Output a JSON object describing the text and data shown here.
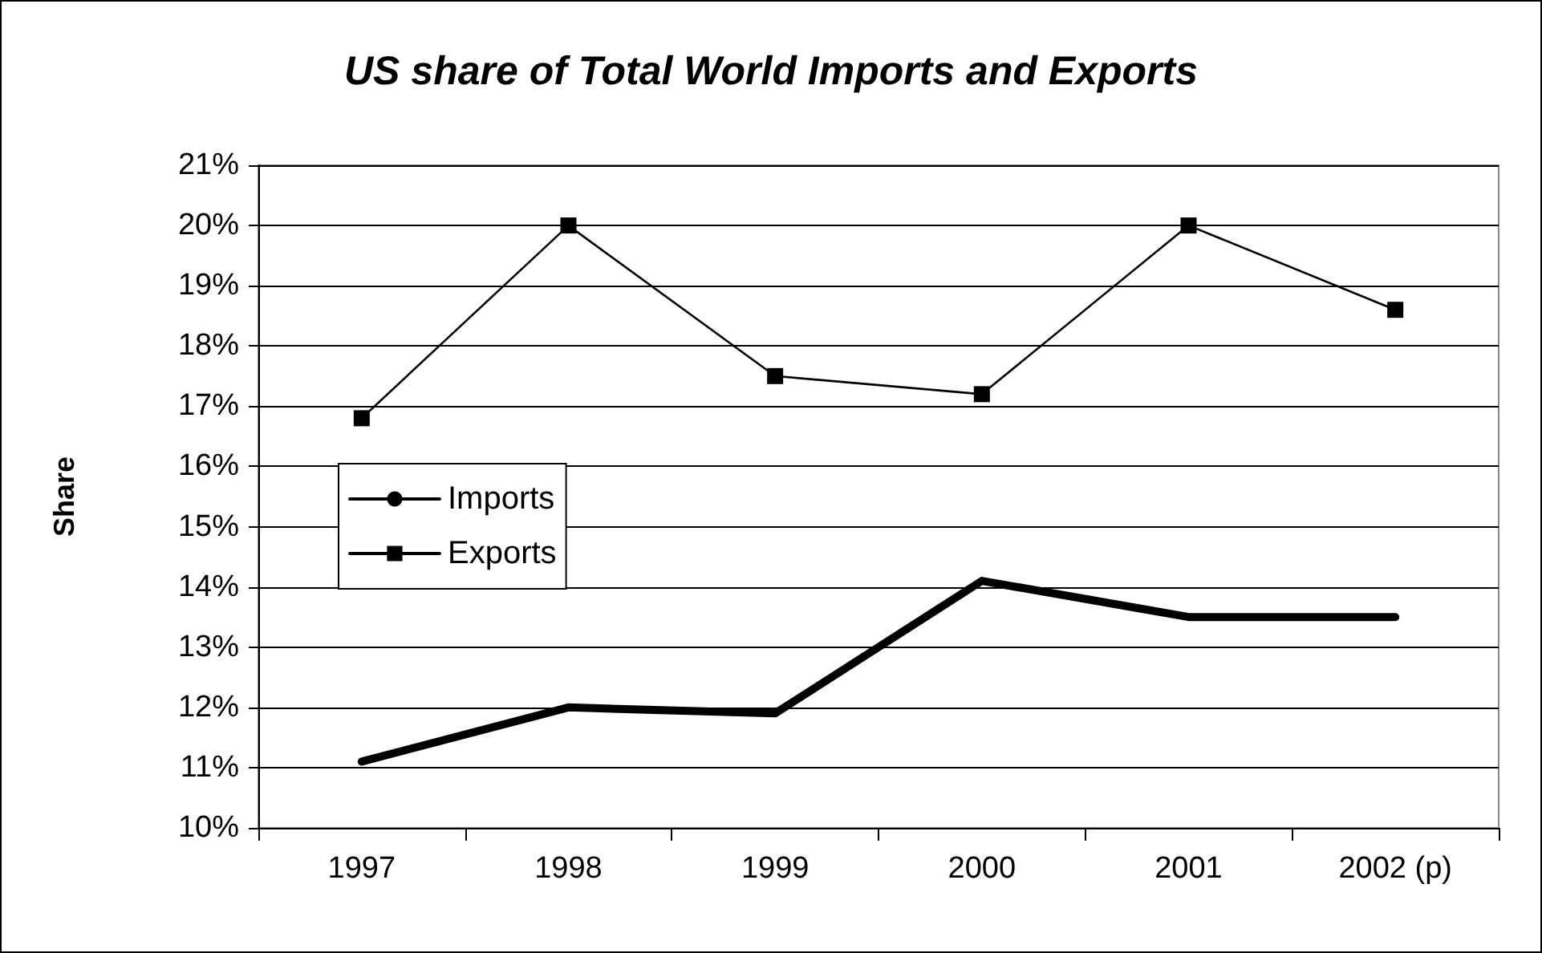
{
  "chart_data": {
    "type": "line",
    "title": "US share of Total World Imports and Exports",
    "ylabel": "Share",
    "categories": [
      "1997",
      "1998",
      "1999",
      "2000",
      "2001",
      "2002 (p)"
    ],
    "series": [
      {
        "name": "Imports",
        "color": "#000000",
        "marker": "none",
        "values": [
          11.1,
          12.0,
          11.9,
          14.1,
          13.5,
          13.5
        ]
      },
      {
        "name": "Exports",
        "color": "#000000",
        "marker": "square",
        "values": [
          16.8,
          20.0,
          17.5,
          17.2,
          20.0,
          18.6
        ]
      }
    ],
    "ylim": [
      10,
      21
    ],
    "yticks": [
      {
        "value": 10,
        "label": "10%"
      },
      {
        "value": 11,
        "label": "11%"
      },
      {
        "value": 12,
        "label": "12%"
      },
      {
        "value": 13,
        "label": "13%"
      },
      {
        "value": 14,
        "label": "14%"
      },
      {
        "value": 15,
        "label": "15%"
      },
      {
        "value": 16,
        "label": "16%"
      },
      {
        "value": 17,
        "label": "17%"
      },
      {
        "value": 18,
        "label": "18%"
      },
      {
        "value": 19,
        "label": "19%"
      },
      {
        "value": 20,
        "label": "20%"
      },
      {
        "value": 21,
        "label": "21%"
      }
    ],
    "grid": "y",
    "legend": "left"
  }
}
